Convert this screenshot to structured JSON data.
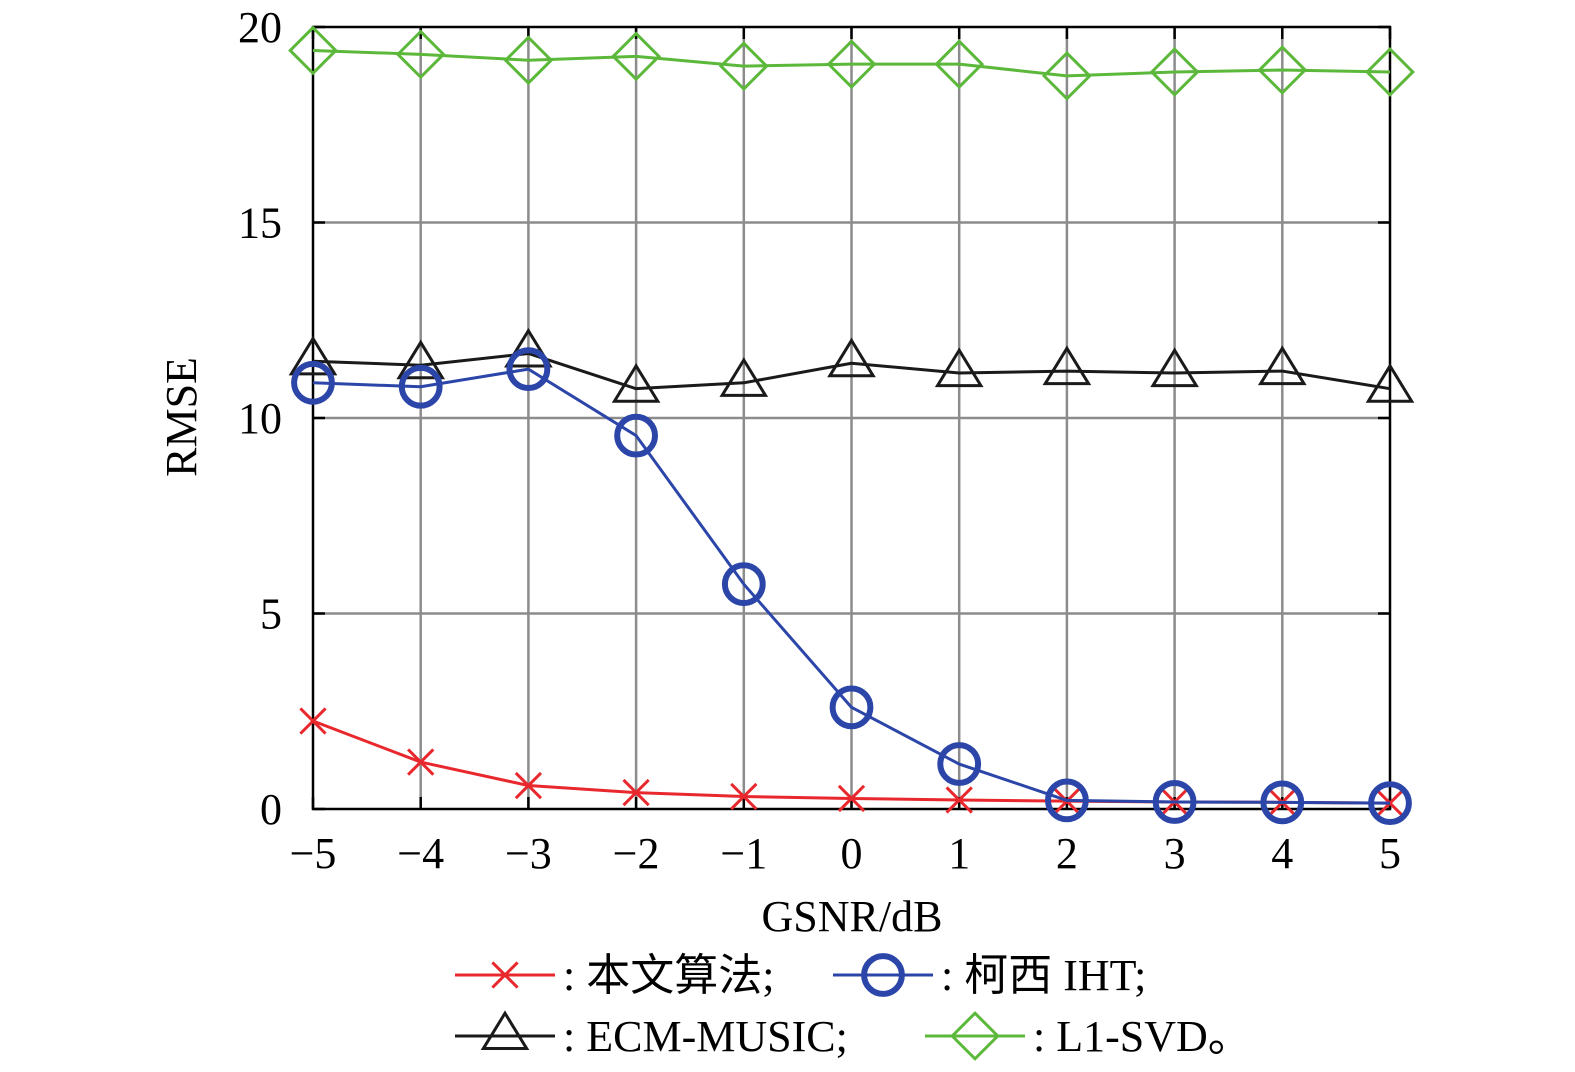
{
  "chart_data": {
    "type": "line",
    "title": "",
    "xlabel": "GSNR/dB",
    "ylabel": "RMSE",
    "xlim": [
      -5,
      5
    ],
    "ylim": [
      0,
      20
    ],
    "x": [
      -5,
      -4,
      -3,
      -2,
      -1,
      0,
      1,
      2,
      3,
      4,
      5
    ],
    "x_tick_labels": [
      "−5",
      "−4",
      "−3",
      "−2",
      "−1",
      "0",
      "1",
      "2",
      "3",
      "4",
      "5"
    ],
    "y_ticks": [
      0,
      5,
      10,
      15,
      20
    ],
    "y_tick_labels": [
      "0",
      "5",
      "10",
      "15",
      "20"
    ],
    "grid": true,
    "legend_position": "bottom",
    "series": [
      {
        "name": "本文算法",
        "legend_label": ": 本文算法;",
        "marker": "x",
        "color": "#e8282d",
        "values": [
          2.25,
          1.2,
          0.6,
          0.42,
          0.32,
          0.27,
          0.23,
          0.2,
          0.18,
          0.17,
          0.15
        ]
      },
      {
        "name": "柯西 IHT",
        "legend_label": ": 柯西 IHT;",
        "marker": "circle",
        "color": "#2b46a8",
        "values": [
          10.9,
          10.8,
          11.25,
          9.55,
          5.75,
          2.6,
          1.15,
          0.22,
          0.18,
          0.17,
          0.15
        ]
      },
      {
        "name": "ECM-MUSIC",
        "legend_label": ": ECM-MUSIC;",
        "marker": "triangle",
        "color": "#1a1a1a",
        "values": [
          11.45,
          11.35,
          11.65,
          10.75,
          10.9,
          11.4,
          11.15,
          11.2,
          11.15,
          11.2,
          10.75
        ]
      },
      {
        "name": "L1-SVD",
        "legend_label": ": L1-SVD。",
        "marker": "diamond",
        "color": "#5cb83a",
        "values": [
          19.4,
          19.3,
          19.15,
          19.25,
          19.0,
          19.05,
          19.05,
          18.75,
          18.85,
          18.9,
          18.85
        ]
      }
    ]
  }
}
